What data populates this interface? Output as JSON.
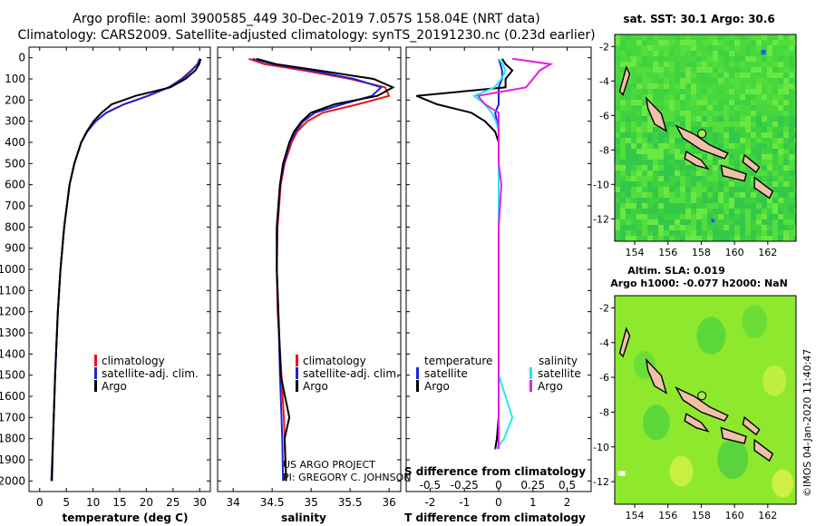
{
  "header": {
    "line1": "Argo profile: aoml 3900585_449 30-Dec-2019 7.057S 158.04E (NRT data)",
    "line2": "Climatology: CARS2009. Satellite-adjusted climatology: synTS_20191230.nc (0.23d earlier)"
  },
  "depth_ticks": [
    "0",
    "100",
    "200",
    "300",
    "400",
    "500",
    "600",
    "700",
    "800",
    "900",
    "1000",
    "1100",
    "1200",
    "1300",
    "1400",
    "1500",
    "1600",
    "1700",
    "1800",
    "1900",
    "2000"
  ],
  "credits": {
    "project": "US ARGO PROJECT",
    "pi": "PI: GREGORY C. JOHNSON"
  },
  "colors": {
    "climatology": "#e8141c",
    "satellite": "#1c24d8",
    "argo": "#000000",
    "sal_satellite": "#22e8e8",
    "sal_argo": "#e020e0",
    "land": "#f0c0a8"
  },
  "legends": {
    "temperature": [
      "climatology",
      "satellite-adj. clim.",
      "Argo"
    ],
    "salinity": [
      "climatology",
      "satellite-adj. clim.",
      "Argo"
    ],
    "diff_temp_title": "temperature",
    "diff_sal_title": "salinity",
    "diff_items": [
      "satellite",
      "Argo"
    ]
  },
  "maps": {
    "sst_title": "sat. SST: 30.1  Argo: 30.6",
    "sla_title1": "Altim. SLA: 0.019",
    "sla_title2": "Argo h1000: -0.077  h2000: NaN",
    "lat_ticks": [
      "-2",
      "-4",
      "-6",
      "-8",
      "-10",
      "-12"
    ],
    "lon_ticks": [
      "154",
      "156",
      "158",
      "160",
      "162"
    ],
    "float_position": {
      "lon": 158.04,
      "lat": -7.057
    }
  },
  "footer_stamp": "©IMOS 04-Jan-2020 11:40:47",
  "chart_data": [
    {
      "type": "line",
      "title": "",
      "xlabel": "temperature (deg C)",
      "ylabel": "",
      "xlim": [
        -2,
        32
      ],
      "ylim": [
        2050,
        0
      ],
      "x_ticks": [
        "0",
        "5",
        "10",
        "15",
        "20",
        "25",
        "30"
      ],
      "depth": [
        5,
        30,
        60,
        100,
        140,
        180,
        220,
        260,
        300,
        350,
        400,
        500,
        600,
        800,
        1000,
        1200,
        1500,
        1800,
        2000
      ],
      "series": [
        {
          "name": "climatology",
          "values": [
            30.0,
            29.6,
            28.4,
            26.6,
            24.2,
            20.3,
            15.8,
            12.5,
            10.5,
            8.9,
            7.8,
            6.5,
            5.6,
            4.6,
            3.9,
            3.4,
            2.9,
            2.5,
            2.2
          ]
        },
        {
          "name": "satellite-adj. clim.",
          "values": [
            30.0,
            29.6,
            28.5,
            26.8,
            24.2,
            20.3,
            15.8,
            12.5,
            10.5,
            8.9,
            7.8,
            6.5,
            5.6,
            4.6,
            3.9,
            3.4,
            2.9,
            2.5,
            2.2
          ]
        },
        {
          "name": "Argo",
          "values": [
            30.2,
            29.9,
            29.2,
            27.3,
            24.5,
            18.0,
            13.5,
            11.6,
            10.1,
            8.8,
            7.8,
            6.5,
            5.6,
            4.6,
            3.9,
            3.4,
            2.9,
            2.5,
            2.3
          ]
        }
      ]
    },
    {
      "type": "line",
      "xlabel": "salinity",
      "xlim": [
        33.8,
        36.15
      ],
      "ylim": [
        2050,
        0
      ],
      "x_ticks": [
        "34",
        "34.5",
        "35",
        "35.5",
        "36"
      ],
      "depth": [
        5,
        30,
        60,
        100,
        140,
        180,
        220,
        260,
        300,
        350,
        400,
        500,
        600,
        800,
        1000,
        1200,
        1500,
        1700,
        1800,
        2000
      ],
      "series": [
        {
          "name": "climatology",
          "values": [
            34.2,
            34.4,
            34.9,
            35.5,
            35.95,
            36.0,
            35.6,
            35.15,
            34.95,
            34.82,
            34.75,
            34.66,
            34.61,
            34.57,
            34.56,
            34.57,
            34.62,
            34.65,
            34.66,
            34.68
          ]
        },
        {
          "name": "satellite-adj. clim.",
          "values": [
            34.25,
            34.5,
            35.0,
            35.55,
            35.9,
            35.78,
            35.4,
            35.05,
            34.9,
            34.8,
            34.73,
            34.65,
            34.6,
            34.56,
            34.56,
            34.58,
            34.6,
            34.62,
            34.63,
            34.64
          ]
        },
        {
          "name": "Argo",
          "values": [
            34.3,
            34.55,
            35.1,
            35.8,
            36.05,
            35.85,
            35.3,
            35.0,
            34.88,
            34.78,
            34.72,
            34.64,
            34.6,
            34.56,
            34.56,
            34.58,
            34.61,
            34.72,
            34.66,
            34.68
          ]
        }
      ]
    },
    {
      "type": "line",
      "xlabel": "T difference from climatology",
      "xlabel2": "S difference from climatology",
      "xlim": [
        -2.7,
        2.7
      ],
      "ylim": [
        2050,
        0
      ],
      "x_ticks": [
        "-2",
        "-1",
        "0",
        "1",
        "2"
      ],
      "x2_ticks": [
        "-0.5",
        "-0.25",
        "0",
        "0.25",
        "0.5"
      ],
      "depth": [
        5,
        30,
        60,
        100,
        140,
        180,
        220,
        260,
        300,
        350,
        400,
        500,
        600,
        800,
        1000,
        1200,
        1500,
        1700,
        1800,
        1850
      ],
      "series": [
        {
          "name": "T satellite",
          "values": [
            0.0,
            0.05,
            0.1,
            0.1,
            0.0,
            0.0,
            0.0,
            -0.1,
            -0.05,
            0.0,
            0.0,
            0.0,
            0.0,
            0.0,
            0.0,
            0.0,
            0.0,
            0.0,
            -0.05,
            -0.1
          ]
        },
        {
          "name": "T Argo",
          "values": [
            0.1,
            0.2,
            0.4,
            0.2,
            0.2,
            -2.4,
            -1.8,
            -0.8,
            -0.4,
            -0.1,
            0.0,
            0.0,
            0.0,
            0.0,
            0.0,
            0.0,
            0.0,
            0.0,
            -0.05,
            -0.1
          ]
        },
        {
          "name": "S satellite",
          "values": [
            0.0,
            0.03,
            0.05,
            0.02,
            -0.03,
            -0.18,
            -0.1,
            -0.05,
            -0.02,
            0.0,
            0.0,
            0.0,
            0.0,
            0.0,
            0.0,
            0.0,
            0.0,
            0.1,
            0.04,
            -0.02
          ]
        },
        {
          "name": "S Argo",
          "values": [
            0.1,
            0.38,
            0.3,
            0.25,
            0.2,
            -0.15,
            -0.1,
            0.0,
            0.0,
            0.0,
            0.0,
            0.0,
            0.02,
            0.0,
            0.0,
            0.0,
            0.0,
            0.0,
            0.0,
            0.0
          ]
        }
      ]
    }
  ]
}
